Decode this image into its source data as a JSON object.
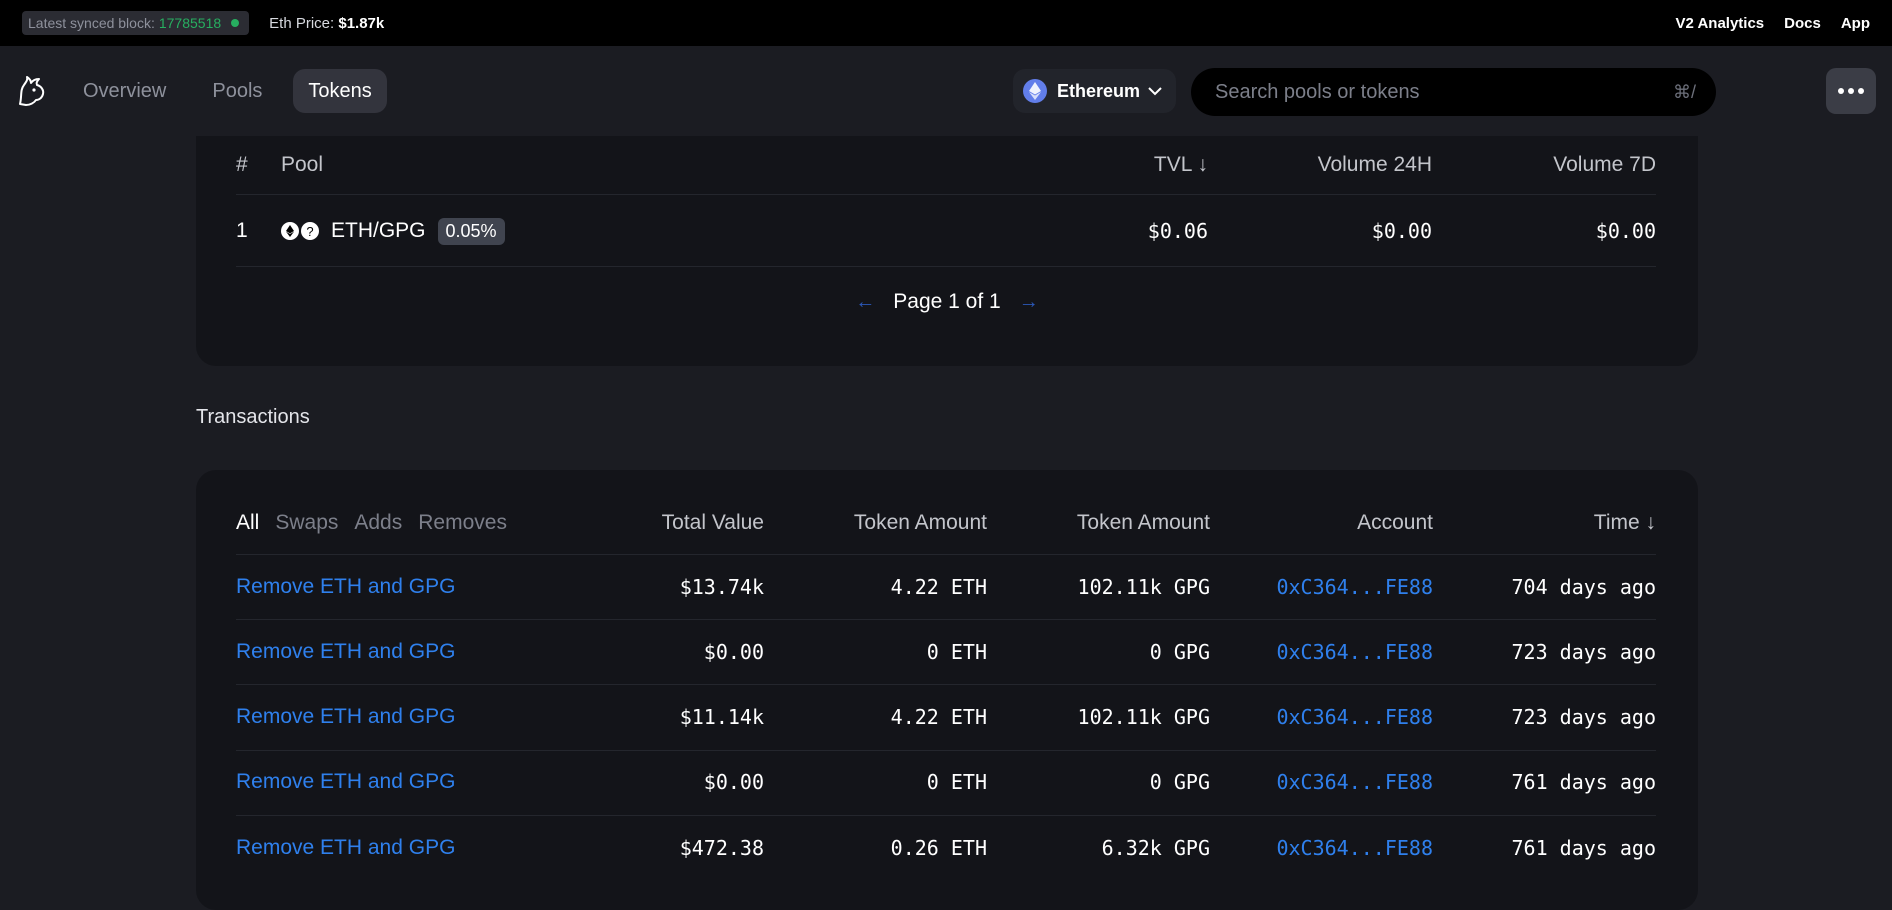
{
  "topbar": {
    "sync_label": "Latest synced block:",
    "block_number": "17785518",
    "eth_price_label": "Eth Price:",
    "eth_price_value": "$1.87k",
    "links": [
      "V2 Analytics",
      "Docs",
      "App"
    ]
  },
  "nav": {
    "tabs": [
      {
        "label": "Overview",
        "active": false
      },
      {
        "label": "Pools",
        "active": false
      },
      {
        "label": "Tokens",
        "active": true
      }
    ],
    "network": "Ethereum",
    "search_placeholder": "Search pools or tokens",
    "search_shortcut": "⌘/"
  },
  "pools": {
    "headers": {
      "index": "#",
      "pool": "Pool",
      "tvl": "TVL ↓",
      "vol24": "Volume 24H",
      "vol7": "Volume 7D"
    },
    "rows": [
      {
        "index": "1",
        "pair": "ETH/GPG",
        "fee": "0.05%",
        "tvl": "$0.06",
        "vol24": "$0.00",
        "vol7": "$0.00"
      }
    ],
    "pager": "Page 1 of 1"
  },
  "transactions": {
    "title": "Transactions",
    "filters": [
      {
        "label": "All",
        "active": true
      },
      {
        "label": "Swaps",
        "active": false
      },
      {
        "label": "Adds",
        "active": false
      },
      {
        "label": "Removes",
        "active": false
      }
    ],
    "headers": {
      "total": "Total Value",
      "amount1": "Token Amount",
      "amount2": "Token Amount",
      "account": "Account",
      "time": "Time ↓"
    },
    "rows": [
      {
        "action": "Remove ETH and GPG",
        "total": "$13.74k",
        "amount1": "4.22 ETH",
        "amount2": "102.11k GPG",
        "account": "0xC364...FE88",
        "time": "704 days ago"
      },
      {
        "action": "Remove ETH and GPG",
        "total": "$0.00",
        "amount1": "0 ETH",
        "amount2": "0 GPG",
        "account": "0xC364...FE88",
        "time": "723 days ago"
      },
      {
        "action": "Remove ETH and GPG",
        "total": "$11.14k",
        "amount1": "4.22 ETH",
        "amount2": "102.11k GPG",
        "account": "0xC364...FE88",
        "time": "723 days ago"
      },
      {
        "action": "Remove ETH and GPG",
        "total": "$0.00",
        "amount1": "0 ETH",
        "amount2": "0 GPG",
        "account": "0xC364...FE88",
        "time": "761 days ago"
      },
      {
        "action": "Remove ETH and GPG",
        "total": "$472.38",
        "amount1": "0.26 ETH",
        "amount2": "6.32k GPG",
        "account": "0xC364...FE88",
        "time": "761 days ago"
      }
    ]
  },
  "colors": {
    "accent": "#2f80ed",
    "sync_green": "#27ae60",
    "ethereum": "#627eea"
  }
}
